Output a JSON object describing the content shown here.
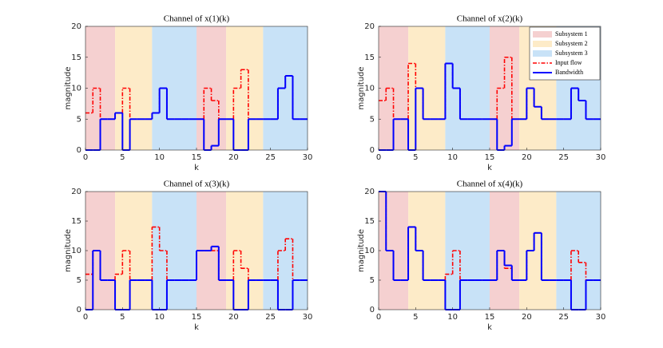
{
  "subsystems": [
    {
      "name": "Subsystem 1",
      "color": "#f5d0d0",
      "spans": [
        [
          0,
          4
        ],
        [
          15,
          19
        ]
      ]
    },
    {
      "name": "Subsystem 2",
      "color": "#fdebc8",
      "spans": [
        [
          4,
          9
        ],
        [
          19,
          24
        ]
      ]
    },
    {
      "name": "Subsystem 3",
      "color": "#c8e2f7",
      "spans": [
        [
          9,
          15
        ],
        [
          24,
          30
        ]
      ]
    }
  ],
  "chart_data": [
    {
      "type": "line",
      "step": "post",
      "title": "Channel of x(1)(k)",
      "xlabel": "k",
      "ylabel": "magnitude",
      "x": [
        0,
        1,
        2,
        3,
        4,
        5,
        6,
        7,
        8,
        9,
        10,
        11,
        12,
        13,
        14,
        15,
        16,
        17,
        18,
        19,
        20,
        21,
        22,
        23,
        24,
        25,
        26,
        27,
        28,
        29
      ],
      "series": [
        {
          "color": "#ff0000",
          "dash": true,
          "values": [
            6,
            10,
            5,
            5,
            6,
            10,
            5,
            5,
            5,
            6,
            10,
            5,
            5,
            5,
            5,
            5,
            10,
            8,
            5,
            5,
            10,
            13,
            5,
            5,
            5,
            5,
            10,
            12,
            5,
            5
          ]
        },
        {
          "color": "#0000ff",
          "values": [
            0,
            0,
            5,
            5,
            6,
            0,
            5,
            5,
            5,
            6,
            10,
            5,
            5,
            5,
            5,
            5,
            0,
            0.7,
            5,
            5,
            0,
            0,
            5,
            5,
            5,
            5,
            10,
            12,
            5,
            5
          ]
        }
      ],
      "xlim": [
        0,
        30
      ],
      "ylim": [
        0,
        20
      ],
      "xticks": [
        0,
        5,
        10,
        15,
        20,
        25,
        30
      ],
      "yticks": [
        0,
        5,
        10,
        15,
        20
      ]
    },
    {
      "type": "line",
      "step": "post",
      "title": "Channel of x(2)(k)",
      "xlabel": "k",
      "ylabel": "magnitude",
      "legend": "upper right",
      "x": [
        0,
        1,
        2,
        3,
        4,
        5,
        6,
        7,
        8,
        9,
        10,
        11,
        12,
        13,
        14,
        15,
        16,
        17,
        18,
        19,
        20,
        21,
        22,
        23,
        24,
        25,
        26,
        27,
        28,
        29
      ],
      "series": [
        {
          "name": "Input flow",
          "color": "#ff0000",
          "dash": true,
          "values": [
            8,
            10,
            5,
            5,
            14,
            10,
            5,
            5,
            5,
            14,
            10,
            5,
            5,
            5,
            5,
            5,
            10,
            15,
            5,
            5,
            10,
            7,
            5,
            5,
            5,
            5,
            10,
            8,
            5,
            5
          ]
        },
        {
          "name": "Bandwidth",
          "color": "#0000ff",
          "values": [
            0,
            0,
            5,
            5,
            0,
            10,
            5,
            5,
            5,
            14,
            10,
            5,
            5,
            5,
            5,
            5,
            0,
            0.7,
            5,
            5,
            10,
            7,
            5,
            5,
            5,
            5,
            10,
            8,
            5,
            5
          ]
        }
      ],
      "xlim": [
        0,
        30
      ],
      "ylim": [
        0,
        20
      ],
      "xticks": [
        0,
        5,
        10,
        15,
        20,
        25,
        30
      ],
      "yticks": [
        0,
        5,
        10,
        15,
        20
      ]
    },
    {
      "type": "line",
      "step": "post",
      "title": "Channel of x(3)(k)",
      "xlabel": "k",
      "ylabel": "magnitude",
      "x": [
        0,
        1,
        2,
        3,
        4,
        5,
        6,
        7,
        8,
        9,
        10,
        11,
        12,
        13,
        14,
        15,
        16,
        17,
        18,
        19,
        20,
        21,
        22,
        23,
        24,
        25,
        26,
        27,
        28,
        29
      ],
      "series": [
        {
          "color": "#ff0000",
          "dash": true,
          "values": [
            6,
            10,
            5,
            5,
            6,
            10,
            5,
            5,
            5,
            14,
            10,
            5,
            5,
            5,
            5,
            10,
            10,
            10,
            5,
            5,
            10,
            7,
            5,
            5,
            5,
            5,
            10,
            12,
            5,
            5
          ]
        },
        {
          "color": "#0000ff",
          "values": [
            0,
            10,
            5,
            5,
            0,
            0,
            5,
            5,
            5,
            0,
            0,
            5,
            5,
            5,
            5,
            10,
            10,
            10.7,
            5,
            5,
            0,
            0,
            5,
            5,
            5,
            5,
            0,
            0,
            5,
            5
          ]
        }
      ],
      "xlim": [
        0,
        30
      ],
      "ylim": [
        0,
        20
      ],
      "xticks": [
        0,
        5,
        10,
        15,
        20,
        25,
        30
      ],
      "yticks": [
        0,
        5,
        10,
        15,
        20
      ]
    },
    {
      "type": "line",
      "step": "post",
      "title": "Channel of x(4)(k)",
      "xlabel": "k",
      "ylabel": "magnitude",
      "x": [
        0,
        1,
        2,
        3,
        4,
        5,
        6,
        7,
        8,
        9,
        10,
        11,
        12,
        13,
        14,
        15,
        16,
        17,
        18,
        19,
        20,
        21,
        22,
        23,
        24,
        25,
        26,
        27,
        28,
        29
      ],
      "series": [
        {
          "color": "#ff0000",
          "dash": true,
          "values": [
            20,
            10,
            5,
            5,
            14,
            10,
            5,
            5,
            5,
            6,
            10,
            5,
            5,
            5,
            5,
            5,
            10,
            7,
            5,
            5,
            10,
            13,
            5,
            5,
            5,
            5,
            10,
            8,
            5,
            5
          ]
        },
        {
          "color": "#0000ff",
          "values": [
            20,
            10,
            5,
            5,
            14,
            10,
            5,
            5,
            5,
            0,
            0,
            5,
            5,
            5,
            5,
            5,
            10,
            7.5,
            5,
            5,
            10,
            13,
            5,
            5,
            5,
            5,
            0,
            0,
            5,
            5
          ]
        }
      ],
      "xlim": [
        0,
        30
      ],
      "ylim": [
        0,
        20
      ],
      "xticks": [
        0,
        5,
        10,
        15,
        20,
        25,
        30
      ],
      "yticks": [
        0,
        5,
        10,
        15,
        20
      ]
    }
  ]
}
